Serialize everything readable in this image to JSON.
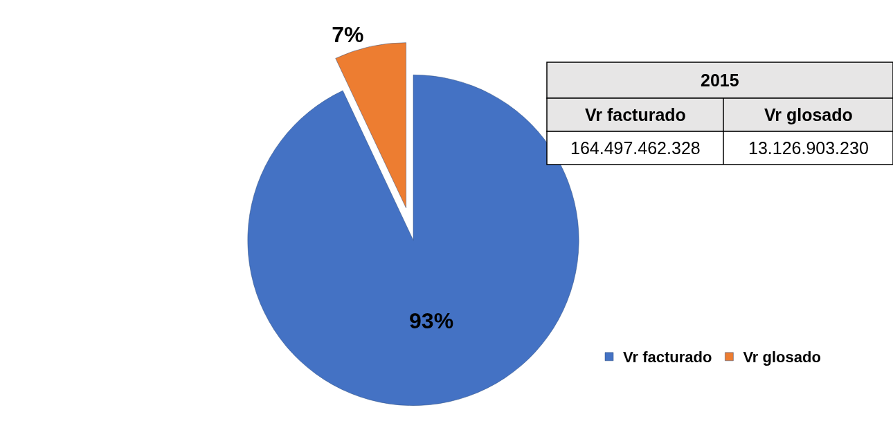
{
  "chart_data": {
    "type": "pie",
    "categories": [
      "Vr facturado",
      "Vr glosado"
    ],
    "values": [
      93,
      7
    ],
    "colors": [
      "#4472c4",
      "#ed7d31"
    ],
    "value_labels": [
      "93%",
      "7%"
    ],
    "legend": "right",
    "annotations": [
      "2015",
      "164.497.462.328",
      "13.126.903.230"
    ]
  }
}
